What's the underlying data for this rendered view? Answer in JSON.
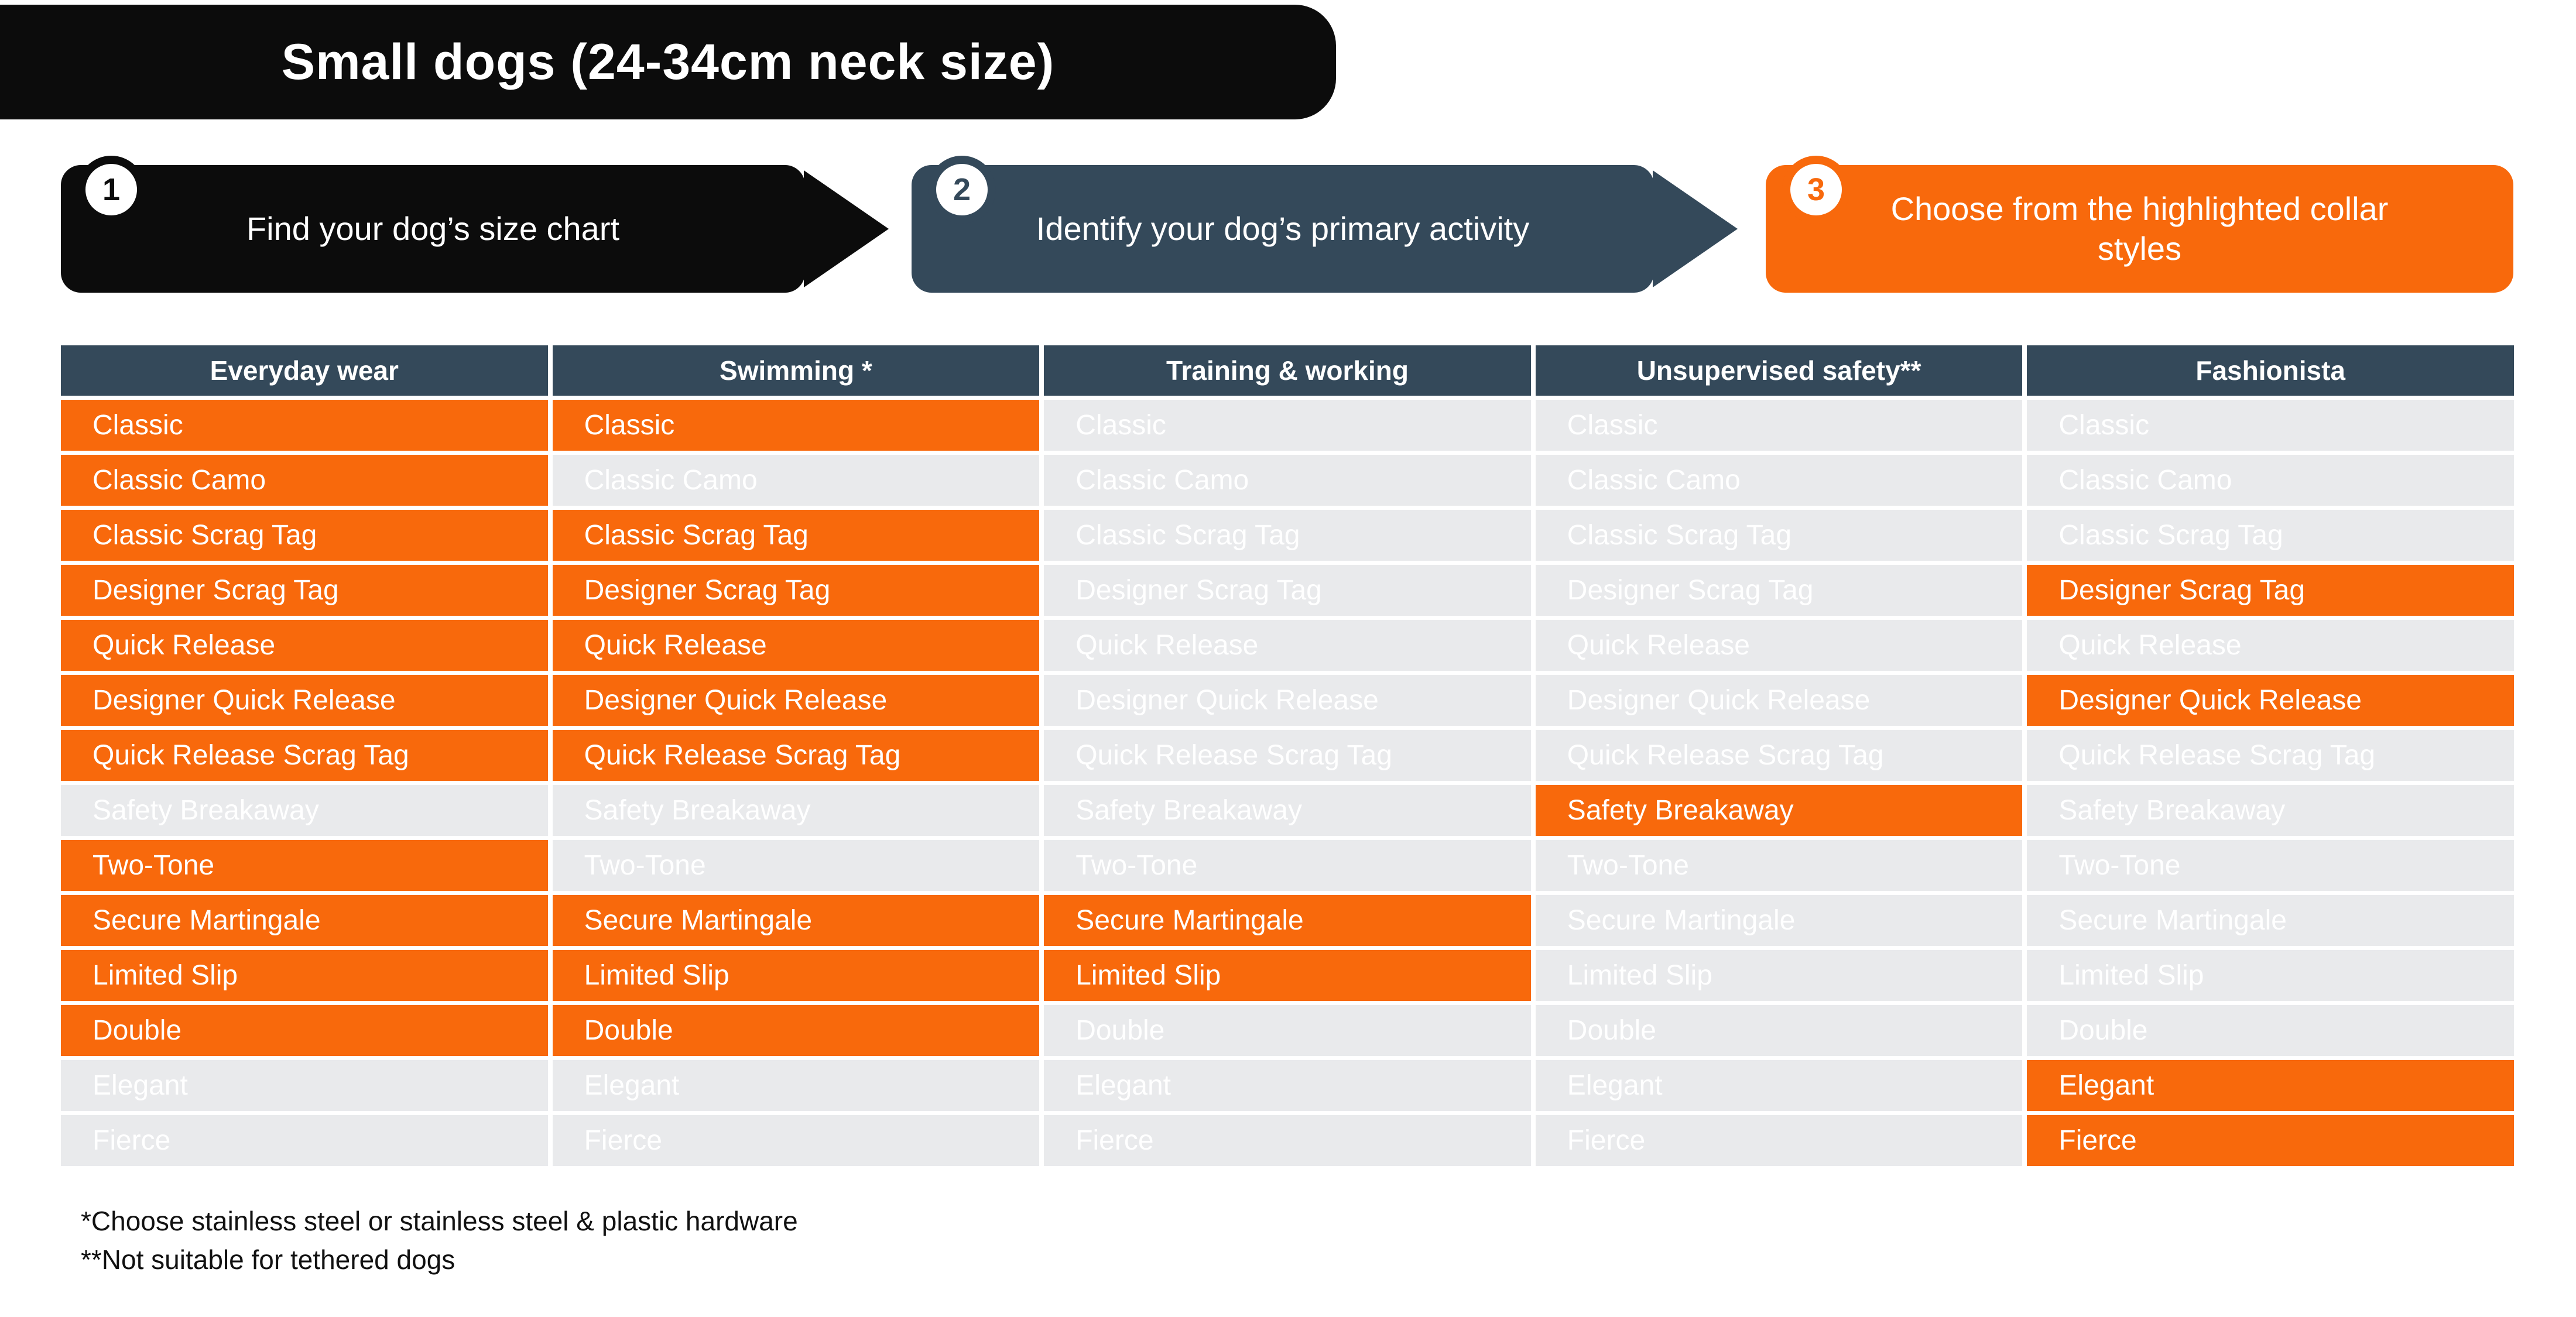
{
  "title": "Small dogs (24-34cm neck size)",
  "steps": [
    {
      "number": "1",
      "label": "Find your dog’s size chart",
      "color": "#0c0c0c",
      "arrow_icon": "triangle-right"
    },
    {
      "number": "2",
      "label": "Identify your dog’s primary activity",
      "color": "#34495a",
      "arrow_icon": "triangle-right"
    },
    {
      "number": "3",
      "label": "Choose from the highlighted collar styles",
      "color": "#f8690c",
      "arrow_icon": null
    }
  ],
  "table": {
    "row_labels": [
      "Classic",
      "Classic Camo",
      "Classic Scrag Tag",
      "Designer Scrag Tag",
      "Quick Release",
      "Designer Quick Release",
      "Quick Release Scrag Tag",
      "Safety Breakaway",
      "Two-Tone",
      "Secure Martingale",
      "Limited Slip",
      "Double",
      "Elegant",
      "Fierce"
    ],
    "columns": [
      {
        "header": "Everyday wear",
        "cells": [
          {
            "label": "Classic",
            "highlighted": true
          },
          {
            "label": "Classic Camo",
            "highlighted": true
          },
          {
            "label": "Classic Scrag Tag",
            "highlighted": true
          },
          {
            "label": "Designer Scrag Tag",
            "highlighted": true
          },
          {
            "label": "Quick Release",
            "highlighted": true
          },
          {
            "label": "Designer Quick Release",
            "highlighted": true
          },
          {
            "label": "Quick Release Scrag Tag",
            "highlighted": true
          },
          {
            "label": "Safety Breakaway",
            "highlighted": false
          },
          {
            "label": "Two-Tone",
            "highlighted": true
          },
          {
            "label": "Secure Martingale",
            "highlighted": true
          },
          {
            "label": "Limited Slip",
            "highlighted": true
          },
          {
            "label": "Double",
            "highlighted": true
          },
          {
            "label": "Elegant",
            "highlighted": false
          },
          {
            "label": "Fierce",
            "highlighted": false
          }
        ]
      },
      {
        "header": "Swimming *",
        "cells": [
          {
            "label": "Classic",
            "highlighted": true
          },
          {
            "label": "Classic Camo",
            "highlighted": false
          },
          {
            "label": "Classic Scrag Tag",
            "highlighted": true
          },
          {
            "label": "Designer Scrag Tag",
            "highlighted": true
          },
          {
            "label": "Quick Release",
            "highlighted": true
          },
          {
            "label": "Designer Quick Release",
            "highlighted": true
          },
          {
            "label": "Quick Release Scrag Tag",
            "highlighted": true
          },
          {
            "label": "Safety Breakaway",
            "highlighted": false
          },
          {
            "label": "Two-Tone",
            "highlighted": false
          },
          {
            "label": "Secure Martingale",
            "highlighted": true
          },
          {
            "label": "Limited Slip",
            "highlighted": true
          },
          {
            "label": "Double",
            "highlighted": true
          },
          {
            "label": "Elegant",
            "highlighted": false
          },
          {
            "label": "Fierce",
            "highlighted": false
          }
        ]
      },
      {
        "header": "Training & working",
        "cells": [
          {
            "label": "Classic",
            "highlighted": false
          },
          {
            "label": "Classic Camo",
            "highlighted": false
          },
          {
            "label": "Classic Scrag Tag",
            "highlighted": false
          },
          {
            "label": "Designer Scrag Tag",
            "highlighted": false
          },
          {
            "label": "Quick Release",
            "highlighted": false
          },
          {
            "label": "Designer Quick Release",
            "highlighted": false
          },
          {
            "label": "Quick Release Scrag Tag",
            "highlighted": false
          },
          {
            "label": "Safety Breakaway",
            "highlighted": false
          },
          {
            "label": "Two-Tone",
            "highlighted": false
          },
          {
            "label": "Secure Martingale",
            "highlighted": true
          },
          {
            "label": "Limited Slip",
            "highlighted": true
          },
          {
            "label": "Double",
            "highlighted": false
          },
          {
            "label": "Elegant",
            "highlighted": false
          },
          {
            "label": "Fierce",
            "highlighted": false
          }
        ]
      },
      {
        "header": "Unsupervised safety**",
        "cells": [
          {
            "label": "Classic",
            "highlighted": false
          },
          {
            "label": "Classic Camo",
            "highlighted": false
          },
          {
            "label": "Classic Scrag Tag",
            "highlighted": false
          },
          {
            "label": "Designer Scrag Tag",
            "highlighted": false
          },
          {
            "label": "Quick Release",
            "highlighted": false
          },
          {
            "label": "Designer Quick Release",
            "highlighted": false
          },
          {
            "label": "Quick Release Scrag Tag",
            "highlighted": false
          },
          {
            "label": "Safety Breakaway",
            "highlighted": true
          },
          {
            "label": "Two-Tone",
            "highlighted": false
          },
          {
            "label": "Secure Martingale",
            "highlighted": false
          },
          {
            "label": "Limited Slip",
            "highlighted": false
          },
          {
            "label": "Double",
            "highlighted": false
          },
          {
            "label": "Elegant",
            "highlighted": false
          },
          {
            "label": "Fierce",
            "highlighted": false
          }
        ]
      },
      {
        "header": "Fashionista",
        "cells": [
          {
            "label": "Classic",
            "highlighted": false
          },
          {
            "label": "Classic Camo",
            "highlighted": false
          },
          {
            "label": "Classic Scrag Tag",
            "highlighted": false
          },
          {
            "label": "Designer Scrag Tag",
            "highlighted": true
          },
          {
            "label": "Quick Release",
            "highlighted": false
          },
          {
            "label": "Designer Quick Release",
            "highlighted": true
          },
          {
            "label": "Quick Release Scrag Tag",
            "highlighted": false
          },
          {
            "label": "Safety Breakaway",
            "highlighted": false
          },
          {
            "label": "Two-Tone",
            "highlighted": false
          },
          {
            "label": "Secure Martingale",
            "highlighted": false
          },
          {
            "label": "Limited Slip",
            "highlighted": false
          },
          {
            "label": "Double",
            "highlighted": false
          },
          {
            "label": "Elegant",
            "highlighted": true
          },
          {
            "label": "Fierce",
            "highlighted": true
          }
        ]
      }
    ]
  },
  "footnotes": [
    "*Choose stainless steel or stainless steel & plastic hardware",
    "**Not suitable for tethered dogs"
  ],
  "colors": {
    "orange": "#f8690c",
    "slate": "#34495a",
    "black": "#0c0c0c",
    "cell_gray": "#e9eaec",
    "text_white": "#ffffff"
  }
}
